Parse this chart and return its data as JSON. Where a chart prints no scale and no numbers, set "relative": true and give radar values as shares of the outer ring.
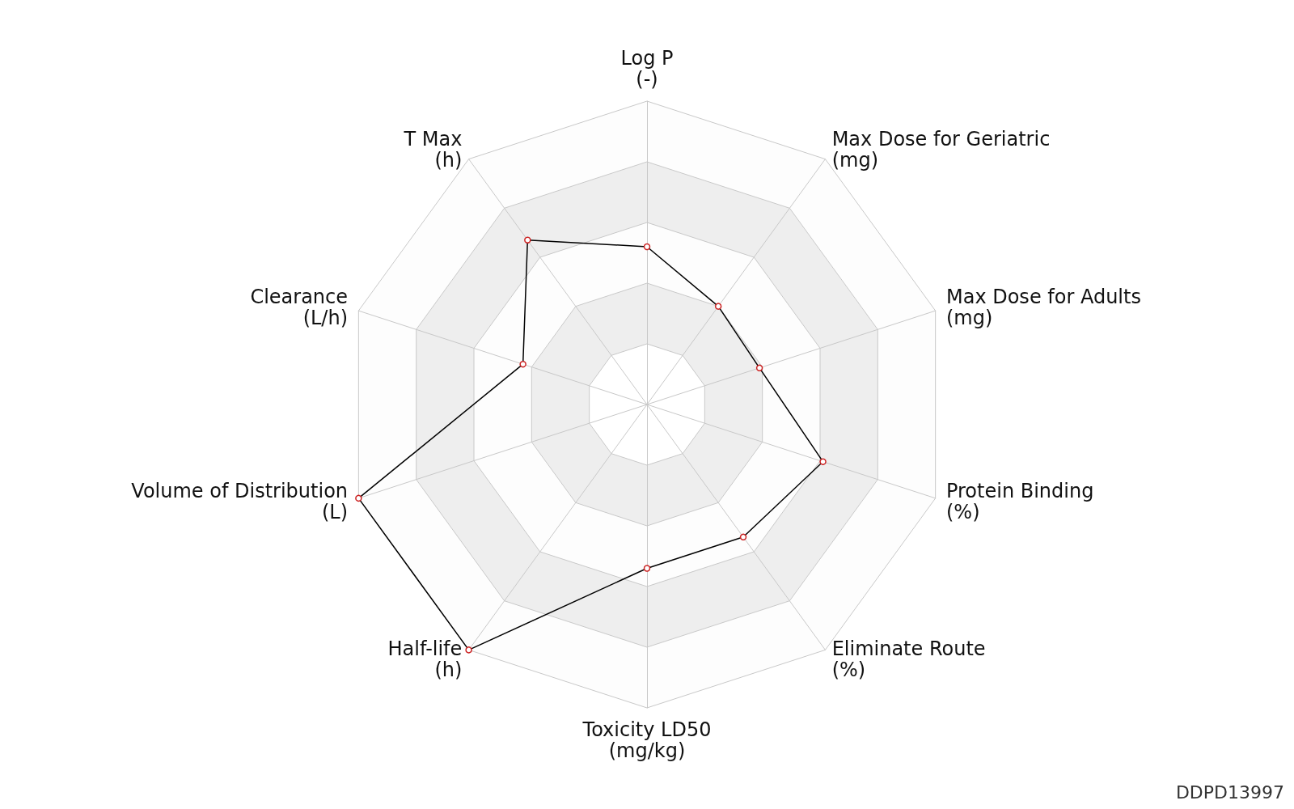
{
  "chart_data": {
    "type": "radar",
    "relative": true,
    "marker": "circle",
    "categories": [
      "Log P\n(-)",
      "Max Dose for Geriatric\n(mg)",
      "Max Dose for Adults\n(mg)",
      "Protein Binding\n(%)",
      "Eliminate Route\n(%)",
      "Toxicity LD50\n(mg/kg)",
      "Half-life\n(h)",
      "Volume of Distribution\n(L)",
      "Clearance\n(L/h)",
      "T Max\n(h)"
    ],
    "series": [
      {
        "color": "#000000",
        "values": [
          0.52,
          0.4,
          0.39,
          0.61,
          0.54,
          0.54,
          1,
          1,
          0.43,
          0.67
        ]
      }
    ],
    "annotations": [
      "DDPD13997"
    ]
  }
}
